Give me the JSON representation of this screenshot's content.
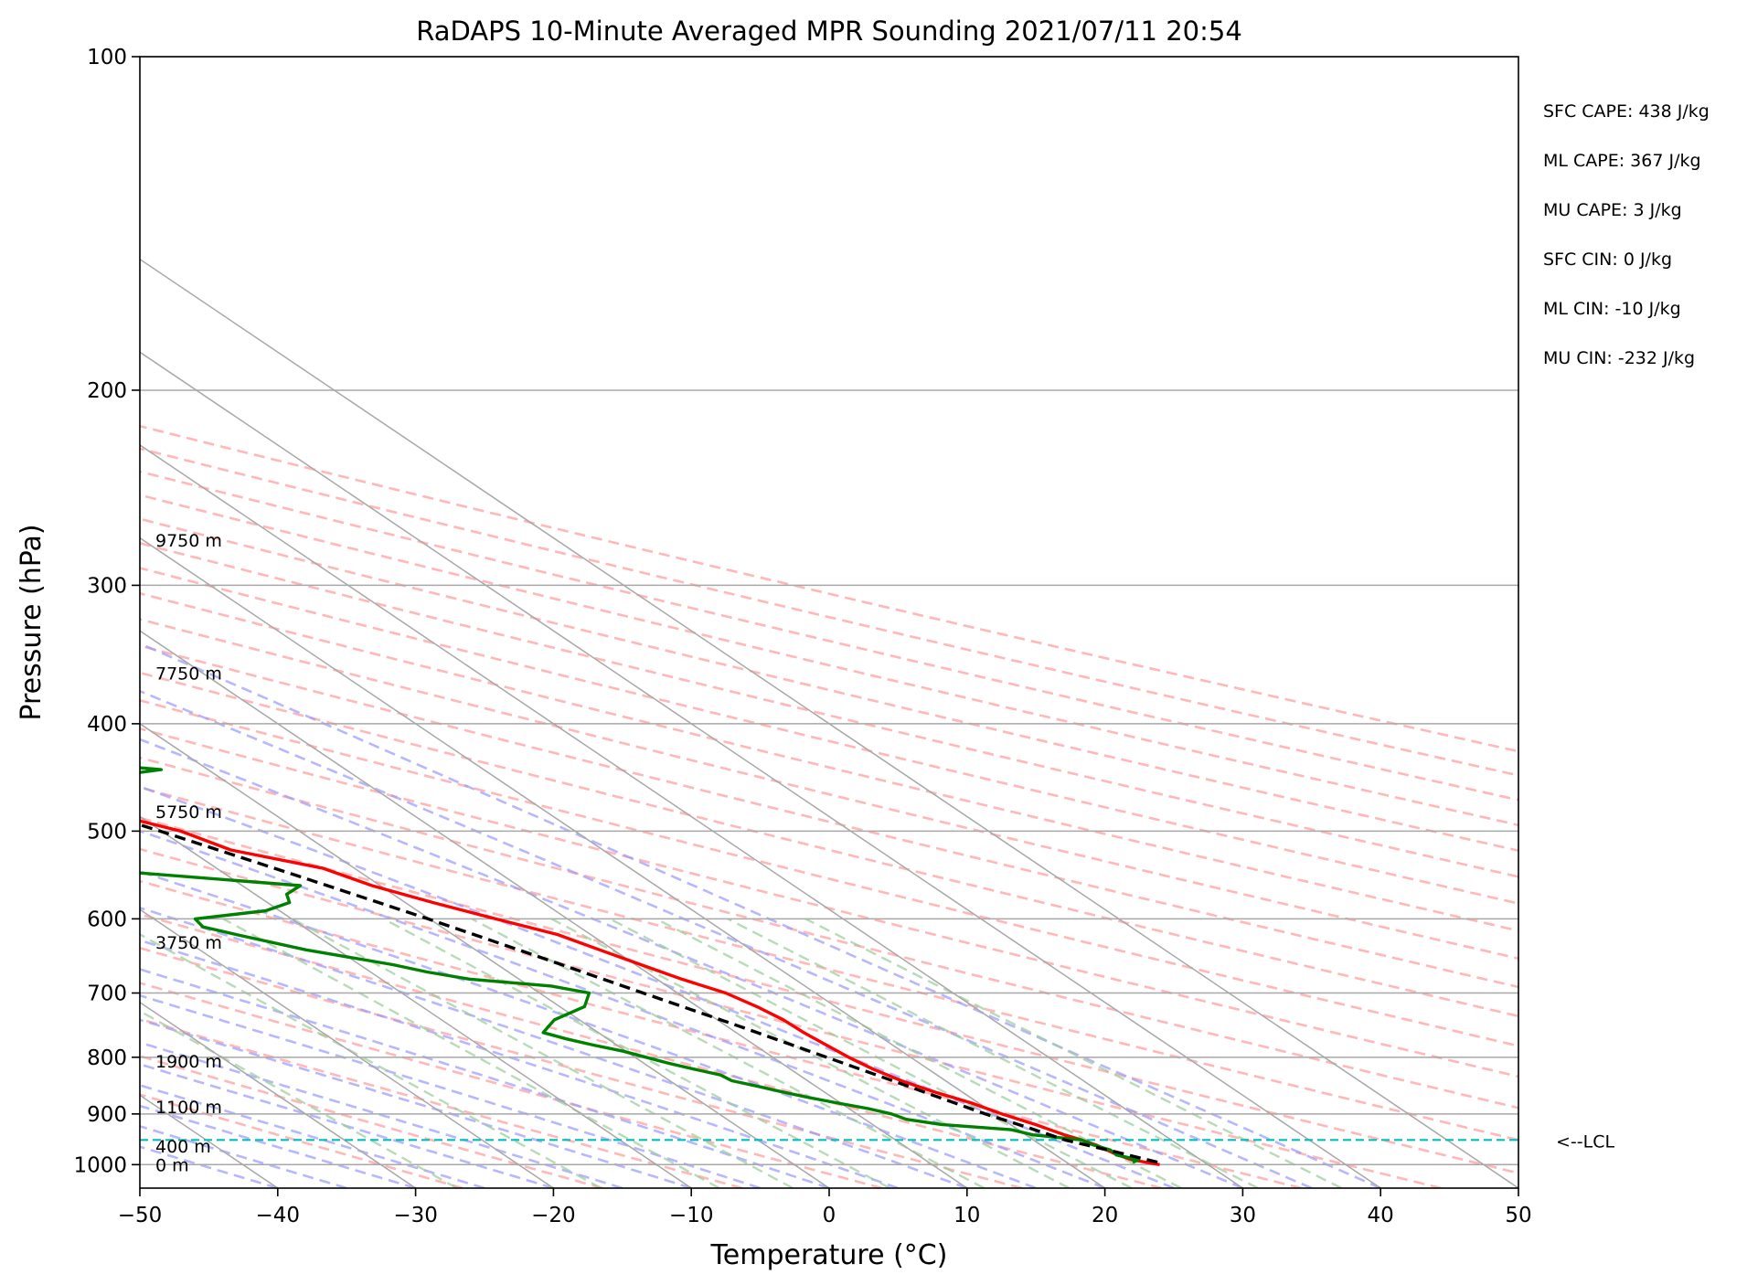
{
  "chart_data": {
    "type": "line",
    "title": "RaDAPS 10-Minute Averaged MPR Sounding 2021/07/11 20:54",
    "xlabel": "Temperature (°C)",
    "ylabel": "Pressure (hPa)",
    "xlim": [
      -50,
      50
    ],
    "ylim": [
      1050,
      100
    ],
    "yscale": "log",
    "grid": true,
    "x_ticks": [
      -50,
      -40,
      -30,
      -20,
      -10,
      0,
      10,
      20,
      30,
      40,
      50
    ],
    "y_ticks": [
      100,
      200,
      300,
      400,
      500,
      600,
      700,
      800,
      900,
      1000
    ],
    "x_tick_labels": [
      "−50",
      "−40",
      "−30",
      "−20",
      "−10",
      "0",
      "10",
      "20",
      "30",
      "40",
      "50"
    ],
    "y_tick_labels": [
      "100",
      "200",
      "300",
      "400",
      "500",
      "600",
      "700",
      "800",
      "900",
      "1000"
    ],
    "height_labels": [
      {
        "text": "9750 m",
        "p": 273
      },
      {
        "text": "7750 m",
        "p": 360
      },
      {
        "text": "5750 m",
        "p": 480
      },
      {
        "text": "3750 m",
        "p": 630
      },
      {
        "text": "1900 m",
        "p": 806
      },
      {
        "text": "1100 m",
        "p": 887
      },
      {
        "text": "400 m",
        "p": 962
      },
      {
        "text": "0 m",
        "p": 1000
      }
    ],
    "indices": [
      "SFC CAPE: 438 J/kg",
      "ML CAPE: 367 J/kg",
      "MU CAPE: 3 J/kg",
      "SFC CIN: 0 J/kg",
      "ML CIN: -10 J/kg",
      "MU CIN: -232 J/kg"
    ],
    "lcl": {
      "label": "<--LCL",
      "p": 950
    },
    "skew": {
      "x0": 1.0
    },
    "series": [
      {
        "key": "temperature",
        "color": "#ff0000",
        "p": [
          1000,
          990,
          980,
          960,
          950,
          940,
          920,
          900,
          880,
          860,
          840,
          820,
          800,
          780,
          760,
          740,
          720,
          700,
          680,
          660,
          640,
          620,
          600,
          580,
          560,
          540,
          520,
          500,
          480,
          460,
          440,
          420,
          400,
          380,
          360,
          340,
          330,
          320,
          310
        ],
        "t": [
          26.5,
          25.0,
          24.5,
          24.0,
          23.5,
          22.8,
          21.8,
          20.5,
          19.5,
          18.0,
          16.8,
          16.0,
          15.5,
          15.2,
          14.9,
          14.8,
          14.3,
          13.5,
          11.8,
          10.4,
          9.0,
          7.6,
          4.8,
          2.0,
          -0.6,
          -2.3,
          -7.0,
          -8.6,
          -12.2,
          -16.0,
          -20.0,
          -26.0,
          -30.7,
          -34.9,
          -39.0,
          -42.6,
          -46.7,
          -48.0,
          -48.3
        ]
      },
      {
        "key": "dewpoint",
        "color": "#008000",
        "p": [
          995,
          990,
          980,
          975,
          970,
          960,
          950,
          940,
          930,
          920,
          910,
          900,
          890,
          880,
          870,
          860,
          850,
          840,
          830,
          820,
          810,
          800,
          790,
          780,
          770,
          760,
          740,
          720,
          700,
          690,
          680,
          670,
          660,
          640,
          620,
          610,
          600,
          590,
          580,
          570,
          560,
          540,
          520,
          510,
          500,
          490,
          480,
          460,
          450,
          440,
          430,
          420,
          410,
          400,
          390,
          380,
          370,
          360,
          350,
          340,
          330,
          320,
          310
        ],
        "t": [
          24.8,
          25.5,
          24.4,
          24.5,
          24.5,
          23.8,
          23.5,
          20.5,
          19.5,
          15.0,
          13.0,
          12.5,
          11.4,
          9.8,
          8.3,
          7.0,
          5.8,
          4.5,
          4.3,
          3.0,
          1.8,
          0.8,
          -0.2,
          -1.7,
          -3.0,
          -4.0,
          -1.8,
          1.8,
          3.6,
          1.6,
          -3.6,
          -5.9,
          -7.6,
          -12.3,
          -15.7,
          -17.3,
          -17.0,
          -11.0,
          -8.4,
          -7.7,
          -5.8,
          -20.0,
          -26.0,
          -27.0,
          -23.0,
          -18.5,
          -12.0,
          -9.8,
          -10.5,
          -3.4,
          -11.5,
          -11.5,
          -16.5,
          -31.0,
          -26.2,
          -25.6,
          -33.3,
          -34.4,
          -32.0,
          -54.8,
          -49.8,
          -58.2,
          -33.8
        ]
      },
      {
        "key": "parcel",
        "color": "#000000",
        "dashed": true,
        "p": [
          995,
          975,
          950,
          925,
          900,
          850,
          800,
          750,
          700,
          650,
          600,
          550,
          500,
          450,
          400,
          350,
          310
        ],
        "t": [
          26.6,
          24.8,
          22.3,
          20.9,
          19.3,
          16.7,
          13.9,
          10.9,
          7.5,
          3.9,
          -0.1,
          -4.8,
          -10.1,
          -16.3,
          -23.8,
          -33.0,
          -42.0
        ]
      }
    ]
  },
  "colors": {
    "isotherm": "#a8a8a8",
    "dry_adiabat": "#ff9999",
    "moist_adiabat": "#9999ff",
    "mixing_ratio": "#99cc99",
    "lcl_line": "#00bfbf"
  }
}
